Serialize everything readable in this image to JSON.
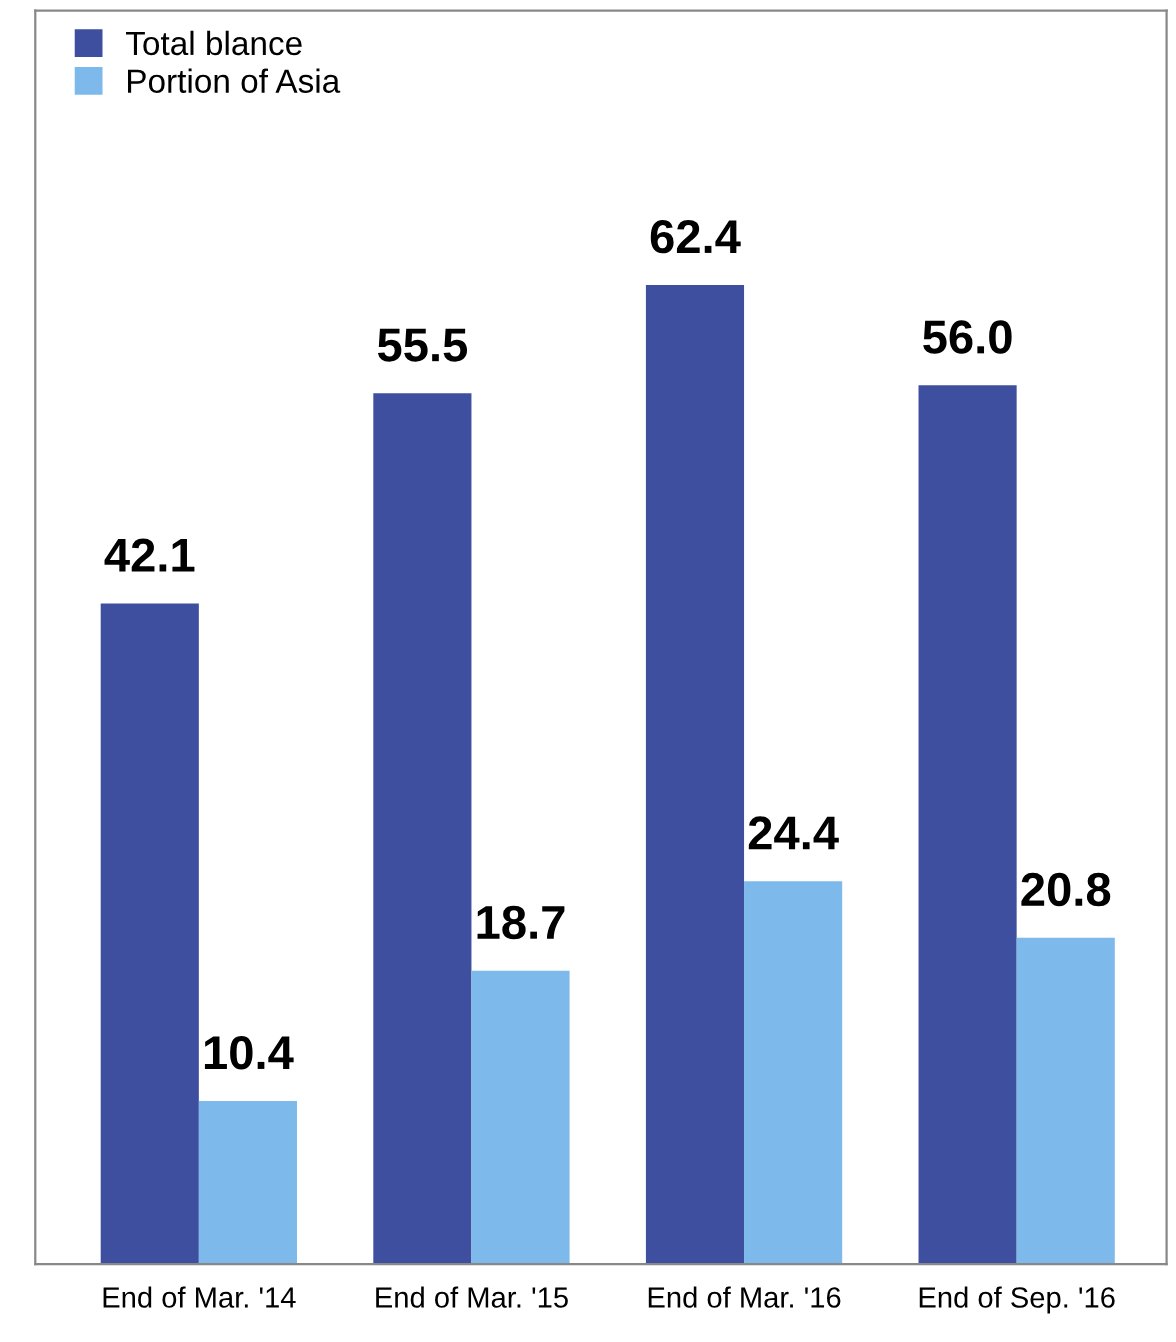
{
  "chart_data": {
    "type": "bar",
    "categories": [
      "End of Mar. '14",
      "End of Mar. '15",
      "End of Mar. '16",
      "End of Sep. '16"
    ],
    "series": [
      {
        "name": "Total blance",
        "color": "#3d4f9e",
        "values": [
          42.1,
          55.5,
          62.4,
          56.0
        ],
        "value_labels": [
          "42.1",
          "55.5",
          "62.4",
          "56.0"
        ]
      },
      {
        "name": "Portion of Asia",
        "color": "#7db9ea",
        "values": [
          10.4,
          18.7,
          24.4,
          20.8
        ],
        "value_labels": [
          "10.4",
          "18.7",
          "24.4",
          "20.8"
        ]
      }
    ],
    "legend": "top left",
    "grid": false
  }
}
